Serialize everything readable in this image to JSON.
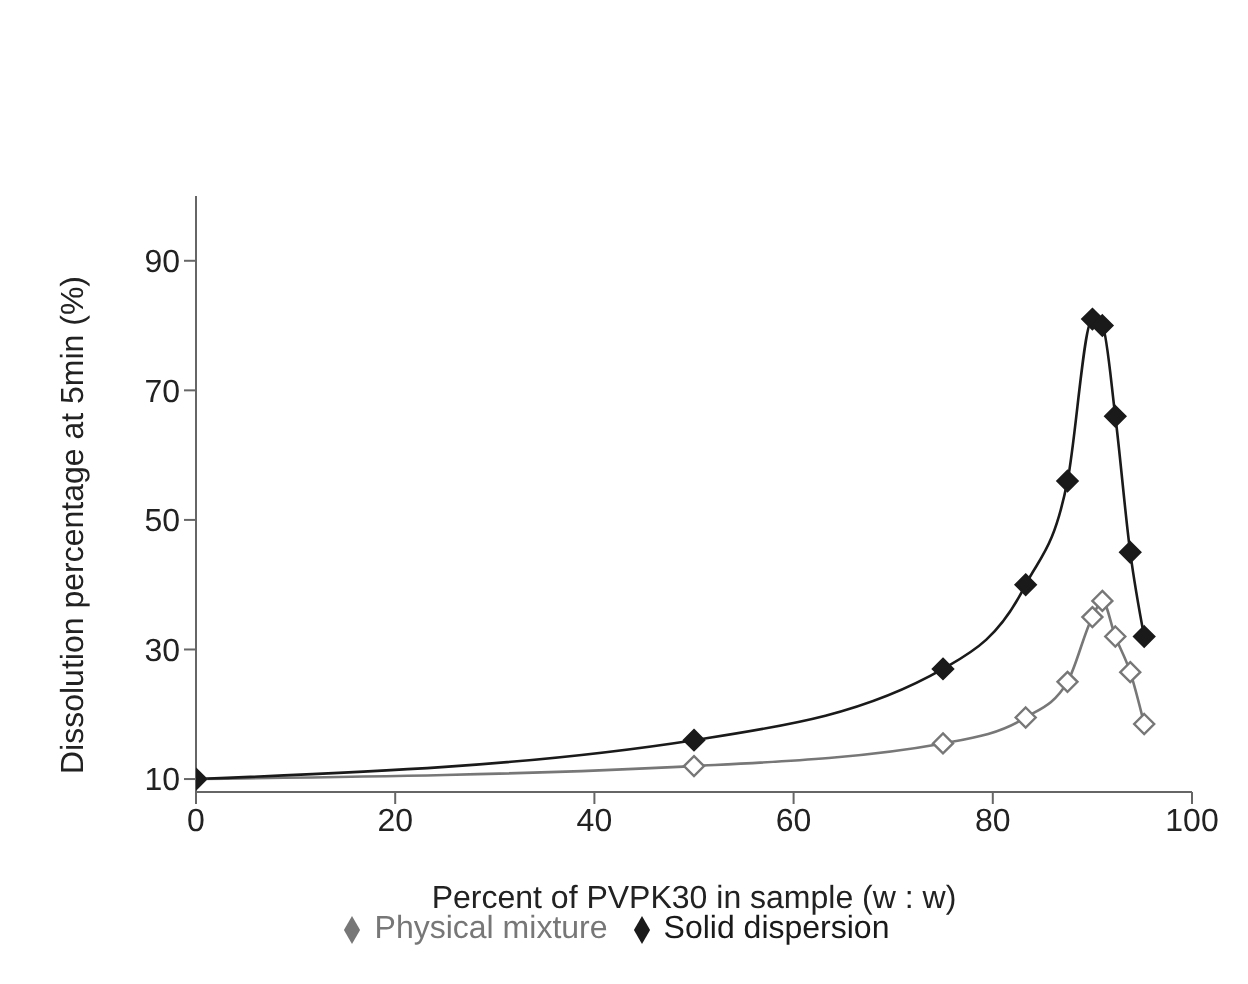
{
  "chart_data": {
    "type": "line",
    "xlabel": "Percent of PVPK30 in sample (w : w)",
    "ylabel": "Dissolution percentage at 5min (%)",
    "xlim": [
      0,
      100
    ],
    "xticks": [
      0,
      20,
      40,
      60,
      80,
      100
    ],
    "ylim": [
      8,
      100
    ],
    "yticks": [
      10,
      30,
      50,
      70,
      90
    ],
    "marker": "diamond",
    "legend": "bottom",
    "grid": false,
    "series": [
      {
        "name": "Physical mixture",
        "color": "#777777",
        "x": [
          0,
          50,
          75,
          83.3,
          87.5,
          90,
          91,
          92.3,
          93.8,
          95.2
        ],
        "values": [
          10,
          12,
          15.5,
          19.5,
          25,
          35,
          37.5,
          32,
          26.5,
          18.5
        ]
      },
      {
        "name": "Solid dispersion",
        "color": "#1a1a1a",
        "x": [
          0,
          50,
          75,
          83.3,
          87.5,
          90,
          91,
          92.3,
          93.8,
          95.2
        ],
        "values": [
          10,
          16,
          27,
          40,
          56,
          81,
          80,
          66,
          45,
          32
        ]
      }
    ]
  }
}
